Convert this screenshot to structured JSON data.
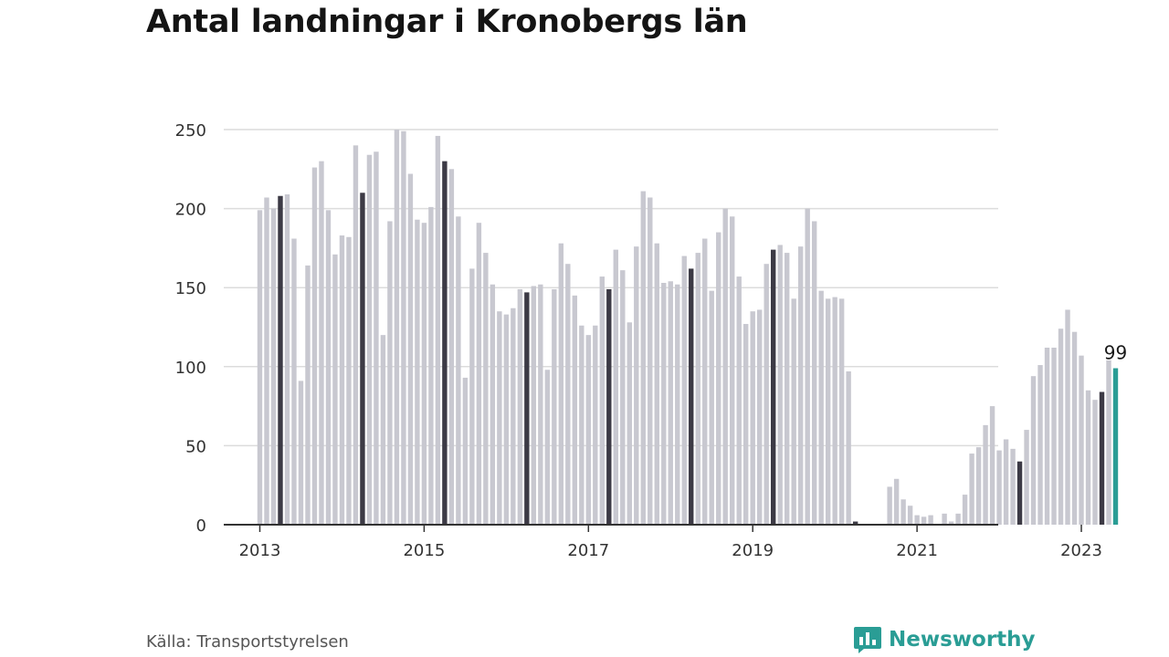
{
  "title": "Antal landningar i Kronobergs län",
  "source": "Källa: Transportstyrelsen",
  "brand": {
    "name": "Newsworthy",
    "icon": "newsworthy-logo-icon"
  },
  "colors": {
    "bar": "#c8c8d0",
    "highlight": "#3c3a45",
    "latest": "#2a9d95",
    "grid": "#dcdcdc",
    "axis": "#333333"
  },
  "chart_data": {
    "type": "bar",
    "title": "Antal landningar i Kronobergs län",
    "xlabel": "",
    "ylabel": "",
    "ylim": [
      0,
      250
    ],
    "y_ticks": [
      0,
      50,
      100,
      150,
      200,
      250
    ],
    "x_ticks": [
      "2013",
      "2015",
      "2017",
      "2019",
      "2021",
      "2023"
    ],
    "grid": true,
    "start": "2013-01",
    "frequency": "monthly",
    "highlight_month": "april",
    "values": [
      199,
      207,
      200,
      208,
      209,
      181,
      91,
      164,
      226,
      230,
      199,
      171,
      183,
      182,
      240,
      210,
      234,
      236,
      120,
      192,
      250,
      249,
      222,
      193,
      191,
      201,
      246,
      230,
      225,
      195,
      93,
      162,
      191,
      172,
      152,
      135,
      133,
      137,
      149,
      147,
      151,
      152,
      98,
      149,
      178,
      165,
      145,
      126,
      120,
      126,
      157,
      149,
      174,
      161,
      128,
      176,
      211,
      207,
      178,
      153,
      154,
      152,
      170,
      162,
      172,
      181,
      148,
      185,
      200,
      195,
      157,
      127,
      135,
      136,
      165,
      174,
      177,
      172,
      143,
      176,
      200,
      192,
      148,
      143,
      144,
      143,
      97,
      2,
      0,
      0,
      0,
      0,
      24,
      29,
      16,
      12,
      6,
      5,
      6,
      0,
      7,
      2,
      7,
      19,
      45,
      49,
      63,
      75,
      47,
      54,
      48,
      40,
      60,
      94,
      101,
      112,
      112,
      124,
      136,
      122,
      107,
      85,
      79,
      84,
      104,
      99
    ],
    "annotations": [
      {
        "label": "99"
      }
    ]
  }
}
